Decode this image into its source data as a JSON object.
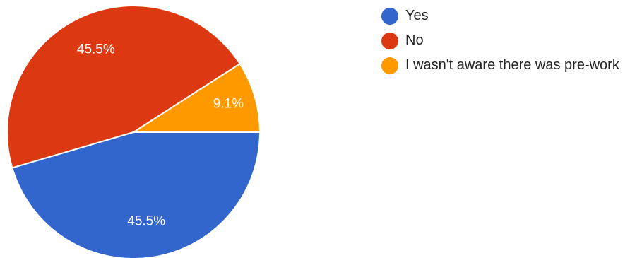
{
  "chart_data": {
    "type": "pie",
    "slices": [
      {
        "name": "Yes",
        "value": 45.5,
        "label": "45.5%",
        "color": "#3366cc"
      },
      {
        "name": "No",
        "value": 45.5,
        "label": "45.5%",
        "color": "#dc3912"
      },
      {
        "name": "I wasn't aware there was pre-work",
        "value": 9.1,
        "label": "9.1%",
        "color": "#ff9900"
      }
    ],
    "legend": {
      "position": "right",
      "entries": [
        {
          "label": "Yes",
          "color": "#3366cc"
        },
        {
          "label": "No",
          "color": "#dc3912"
        },
        {
          "label": "I wasn't aware there was pre-work",
          "color": "#ff9900"
        }
      ]
    }
  }
}
